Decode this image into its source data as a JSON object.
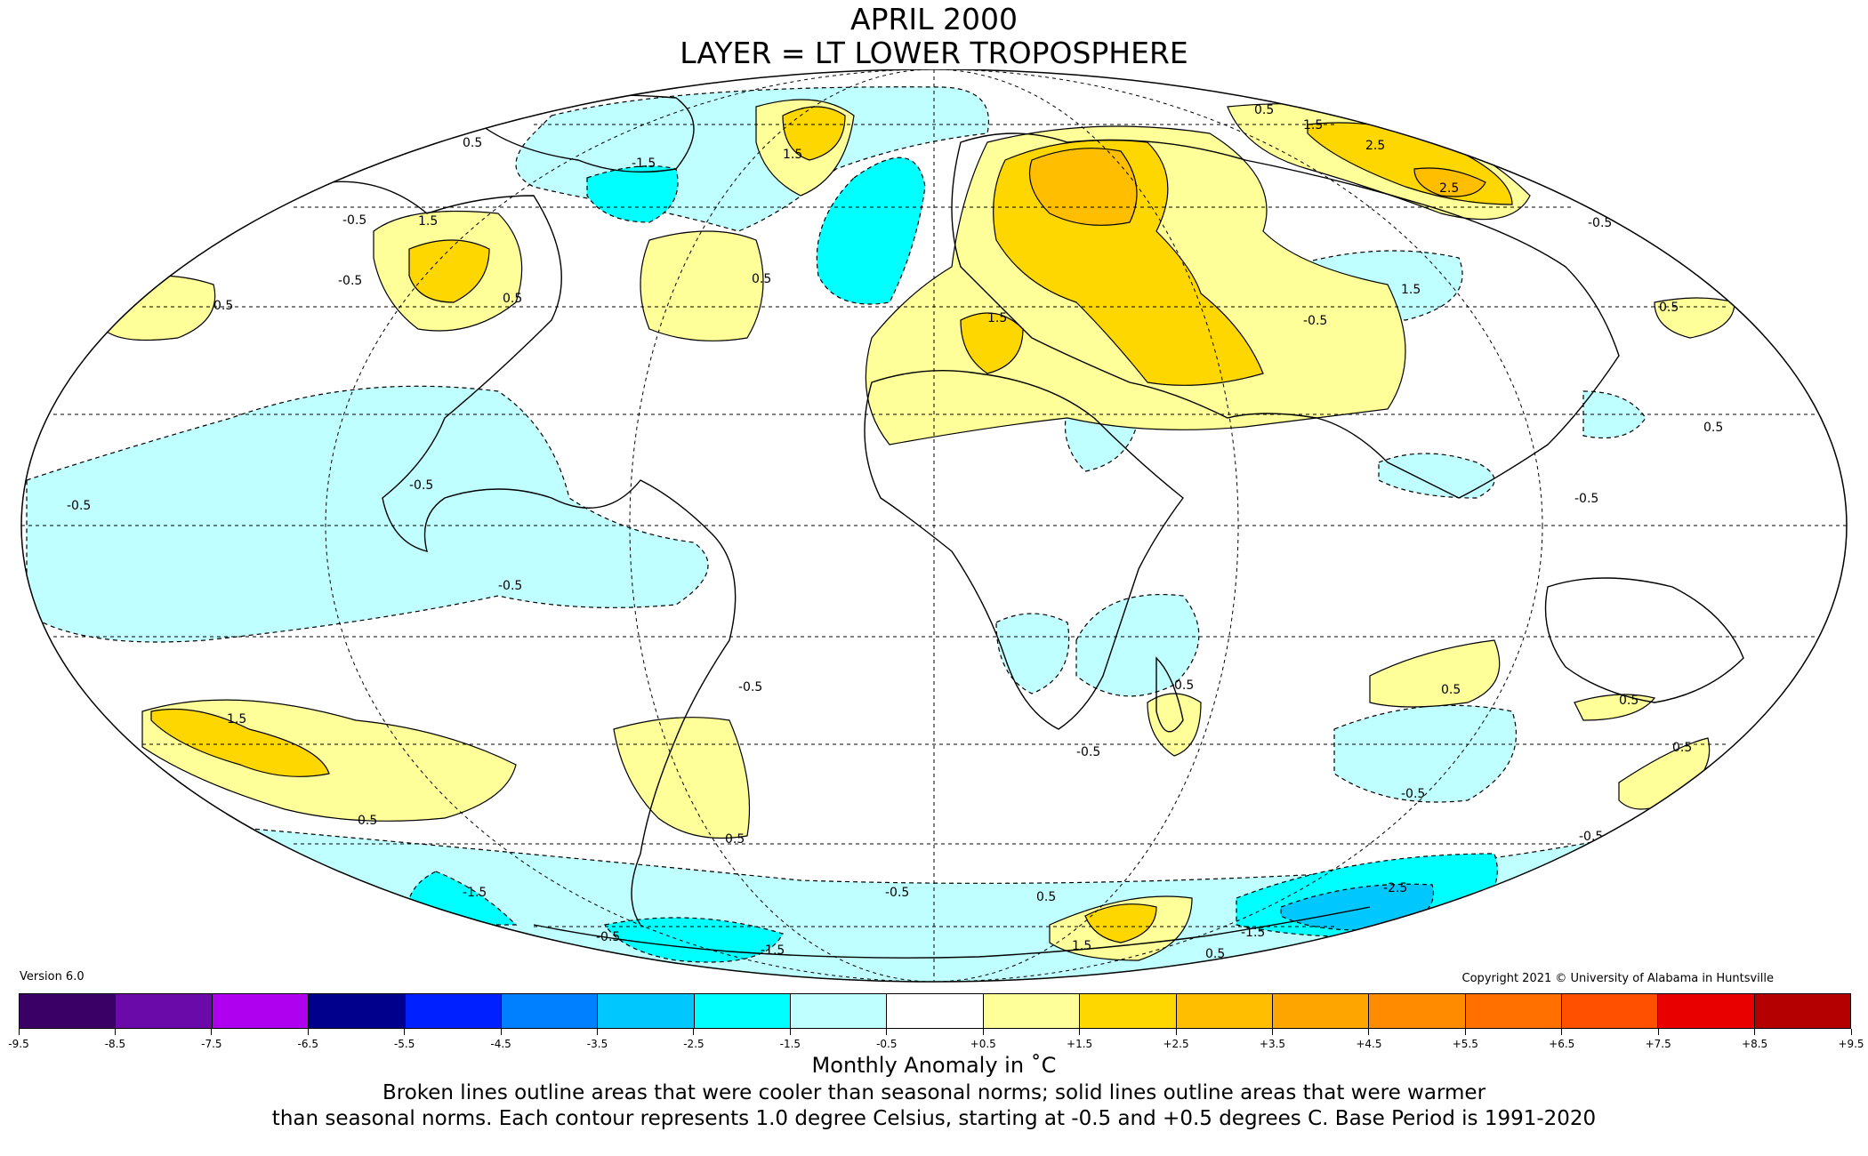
{
  "title": {
    "line1": "APRIL 2000",
    "line2": "LAYER = LT LOWER TROPOSPHERE"
  },
  "version": "Version 6.0",
  "copyright": "Copyright 2021 © University of Alabama in Huntsville",
  "colorbar": {
    "label": "Monthly Anomaly in ˚C",
    "ticks": [
      "-9.5",
      "-8.5",
      "-7.5",
      "-6.5",
      "-5.5",
      "-4.5",
      "-3.5",
      "-2.5",
      "-1.5",
      "-0.5",
      "+0.5",
      "+1.5",
      "+2.5",
      "+3.5",
      "+4.5",
      "+5.5",
      "+6.5",
      "+7.5",
      "+8.5",
      "+9.5"
    ],
    "colors": [
      "#3a0066",
      "#6a0aa8",
      "#b000f0",
      "#00008c",
      "#0020ff",
      "#0080ff",
      "#00c8ff",
      "#00ffff",
      "#c0ffff",
      "#ffffff",
      "#ffff99",
      "#ffd700",
      "#ffbf00",
      "#ffa500",
      "#ff8c00",
      "#ff7000",
      "#ff5000",
      "#e80000",
      "#b40000"
    ]
  },
  "caption": {
    "line1": "Broken lines outline areas that were cooler than seasonal norms; solid lines outline areas that were warmer",
    "line2": "than seasonal norms. Each contour represents 1.0 degree Celsius, starting at -0.5 and +0.5 degrees C. Base Period is 1991-2020"
  },
  "map_colors": {
    "cool_1": "#c0ffff",
    "cool_2": "#00ffff",
    "cool_3": "#00c8ff",
    "warm_1": "#ffff99",
    "warm_2": "#ffd700",
    "warm_3": "#ffbf00"
  },
  "contour_labels": [
    "-0.5",
    "0.5",
    "-1.5",
    "1.5",
    "-2.5",
    "2.5"
  ]
}
